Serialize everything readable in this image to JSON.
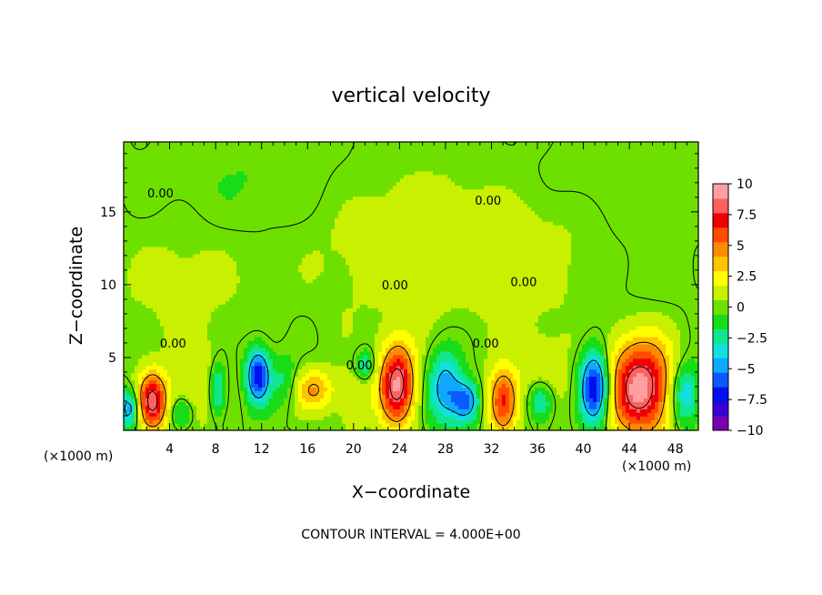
{
  "chart_data": {
    "type": "heatmap",
    "title": "vertical velocity",
    "xlabel": "X−coordinate",
    "ylabel": "Z−coordinate",
    "x_unit_left": "(×1000 m)",
    "x_unit_right": "(×1000 m)",
    "footer": "CONTOUR INTERVAL = 4.000E+00",
    "xlim": [
      0,
      50
    ],
    "ylim": [
      0,
      19.8
    ],
    "x_ticks": [
      4,
      8,
      12,
      16,
      20,
      24,
      28,
      32,
      36,
      40,
      44,
      48
    ],
    "x_tick_labels": [
      "4",
      "8",
      "12",
      "16",
      "20",
      "24",
      "28",
      "32",
      "36",
      "40",
      "44",
      "48"
    ],
    "y_ticks": [
      5,
      10,
      15
    ],
    "y_tick_labels": [
      "5",
      "10",
      "15"
    ],
    "contour_labels": [
      {
        "text": "0.00",
        "x": 3.2,
        "z": 16.3
      },
      {
        "text": "0.00",
        "x": 31.7,
        "z": 15.8
      },
      {
        "text": "0.00",
        "x": 23.6,
        "z": 10.0
      },
      {
        "text": "0.00",
        "x": 34.8,
        "z": 10.2
      },
      {
        "text": "0.00",
        "x": 4.3,
        "z": 6.0
      },
      {
        "text": "0.00",
        "x": 20.5,
        "z": 4.5
      },
      {
        "text": "0.00",
        "x": 31.5,
        "z": 6.0
      }
    ],
    "blobs": [
      {
        "x": 2.5,
        "z": 2.0,
        "sx": 0.9,
        "sz": 1.4,
        "w": 8.5
      },
      {
        "x": 23.8,
        "z": 3.2,
        "sx": 1.1,
        "sz": 2.0,
        "w": 9.0
      },
      {
        "x": 33.0,
        "z": 2.0,
        "sx": 0.9,
        "sz": 1.6,
        "w": 7.0
      },
      {
        "x": 45.0,
        "z": 3.0,
        "sx": 2.0,
        "sz": 2.4,
        "w": 9.5
      },
      {
        "x": 16.6,
        "z": 2.8,
        "sx": 1.2,
        "sz": 1.0,
        "w": 4.0
      },
      {
        "x": 6.2,
        "z": 3.0,
        "sx": 1.6,
        "sz": 2.0,
        "w": 1.8
      },
      {
        "x": 20.0,
        "z": 2.2,
        "sx": 1.0,
        "sz": 1.5,
        "w": 2.0
      },
      {
        "x": 36.5,
        "z": 3.5,
        "sx": 1.8,
        "sz": 2.2,
        "w": 1.5
      },
      {
        "x": 0.5,
        "z": 1.5,
        "sx": 0.6,
        "sz": 0.9,
        "w": -5.5
      },
      {
        "x": 8.2,
        "z": 2.8,
        "sx": 0.5,
        "sz": 1.2,
        "w": -4.5
      },
      {
        "x": 11.7,
        "z": 3.8,
        "sx": 0.7,
        "sz": 1.3,
        "w": -7.5
      },
      {
        "x": 21.0,
        "z": 4.5,
        "sx": 0.6,
        "sz": 0.7,
        "w": -3.5
      },
      {
        "x": 28.0,
        "z": 3.0,
        "sx": 1.0,
        "sz": 1.8,
        "w": -5.0
      },
      {
        "x": 29.8,
        "z": 2.0,
        "sx": 0.8,
        "sz": 1.0,
        "w": -6.0
      },
      {
        "x": 36.3,
        "z": 2.0,
        "sx": 0.8,
        "sz": 1.0,
        "w": -4.5
      },
      {
        "x": 41.0,
        "z": 3.0,
        "sx": 0.9,
        "sz": 1.8,
        "w": -8.5
      },
      {
        "x": 48.8,
        "z": 2.5,
        "sx": 0.9,
        "sz": 1.5,
        "w": -5.0
      },
      {
        "x": 5.0,
        "z": 1.2,
        "sx": 0.7,
        "sz": 0.7,
        "w": -2.5
      },
      {
        "x": 14.0,
        "z": 3.5,
        "sx": 0.8,
        "sz": 1.2,
        "w": -2.0
      },
      {
        "x": 24.0,
        "z": 13.0,
        "sx": 6.0,
        "sz": 4.0,
        "w": 1.2
      },
      {
        "x": 5.0,
        "z": 10.0,
        "sx": 4.0,
        "sz": 3.0,
        "w": 1.0
      },
      {
        "x": 35.0,
        "z": 12.0,
        "sx": 5.0,
        "sz": 4.0,
        "w": 0.9
      },
      {
        "x": 12.0,
        "z": 17.0,
        "sx": 6.0,
        "sz": 2.5,
        "w": -0.7
      },
      {
        "x": 42.0,
        "z": 17.5,
        "sx": 6.0,
        "sz": 2.0,
        "w": -0.6
      },
      {
        "x": 45.0,
        "z": 10.0,
        "sx": 3.0,
        "sz": 3.0,
        "w": -0.5
      }
    ],
    "colorbar": {
      "min": -10,
      "max": 10,
      "tick_labels": [
        "10",
        "7.5",
        "5",
        "2.5",
        "0",
        "−2.5",
        "−5",
        "−7.5",
        "−10"
      ],
      "tick_values": [
        10,
        7.5,
        5,
        2.5,
        0,
        -2.5,
        -5,
        -7.5,
        -10
      ],
      "colors": [
        "#7a00b4",
        "#3a00d2",
        "#0010f0",
        "#0a5bff",
        "#10a8ff",
        "#10e0e0",
        "#10e690",
        "#18dc18",
        "#6ee000",
        "#c8f000",
        "#ffff00",
        "#ffc400",
        "#ff8a00",
        "#ff4a00",
        "#f00000",
        "#ff6060",
        "#ffa0a0"
      ]
    }
  }
}
